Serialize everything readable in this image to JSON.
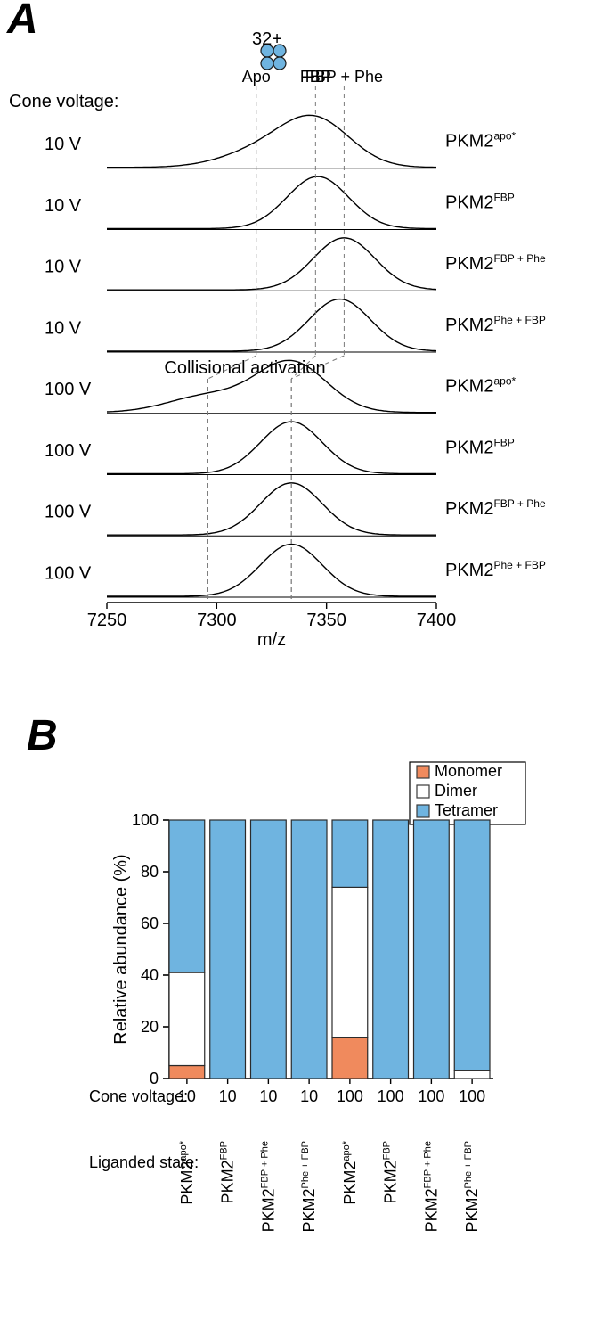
{
  "panelA": {
    "label": "A",
    "coneVoltageLabel": "Cone voltage:",
    "collisionalLabel": "Collisional activation",
    "chargeLabel": "32+",
    "xAxisLabel": "m/z",
    "xlim": [
      7250,
      7400
    ],
    "xticks": [
      7250,
      7300,
      7350,
      7400
    ],
    "markerLabels": [
      "Apo",
      "FBP",
      "FBP + Phe"
    ],
    "markerX_top": [
      7318,
      7345,
      7358
    ],
    "markerX_bot": [
      7296,
      7334,
      7334
    ],
    "traces": [
      {
        "voltage": "10 V",
        "name": "PKM2",
        "super": "apo*",
        "peak": 7345,
        "shoulder": 7320
      },
      {
        "voltage": "10 V",
        "name": "PKM2",
        "super": "FBP",
        "peak": 7346,
        "shoulder": null
      },
      {
        "voltage": "10 V",
        "name": "PKM2",
        "super": "FBP + Phe",
        "peak": 7358,
        "shoulder": null
      },
      {
        "voltage": "10 V",
        "name": "PKM2",
        "super": "Phe + FBP",
        "peak": 7356,
        "shoulder": null
      },
      {
        "voltage": "100 V",
        "name": "PKM2",
        "super": "apo*",
        "peak": 7334,
        "shoulder": 7296
      },
      {
        "voltage": "100 V",
        "name": "PKM2",
        "super": "FBP",
        "peak": 7334,
        "shoulder": null
      },
      {
        "voltage": "100 V",
        "name": "PKM2",
        "super": "FBP + Phe",
        "peak": 7334,
        "shoulder": null
      },
      {
        "voltage": "100 V",
        "name": "PKM2",
        "super": "Phe + FBP",
        "peak": 7334,
        "shoulder": null
      }
    ],
    "lineColor": "#000000",
    "dashColor": "#7a7a7a",
    "tetramerColor": "#6fb4e0",
    "tetramerStroke": "#1a1a1a"
  },
  "panelB": {
    "label": "B",
    "ylabel": "Relative abundance (%)",
    "ylim": [
      0,
      100
    ],
    "yticks": [
      0,
      20,
      40,
      60,
      80,
      100
    ],
    "legend": [
      {
        "label": "Monomer",
        "color": "#f08a5d",
        "stroke": "#3a3a3a"
      },
      {
        "label": "Dimer",
        "color": "#ffffff",
        "stroke": "#3a3a3a"
      },
      {
        "label": "Tetramer",
        "color": "#6fb4e0",
        "stroke": "#3a3a3a"
      }
    ],
    "coneVoltageLabel": "Cone voltage:",
    "ligandedStateLabel": "Liganded state:",
    "bars": [
      {
        "cv": "10",
        "name": "PKM2",
        "super": "apo*",
        "monomer": 5,
        "dimer": 36,
        "tetramer": 59
      },
      {
        "cv": "10",
        "name": "PKM2",
        "super": "FBP",
        "monomer": 0,
        "dimer": 0,
        "tetramer": 100
      },
      {
        "cv": "10",
        "name": "PKM2",
        "super": "FBP + Phe",
        "monomer": 0,
        "dimer": 0,
        "tetramer": 100
      },
      {
        "cv": "10",
        "name": "PKM2",
        "super": "Phe + FBP",
        "monomer": 0,
        "dimer": 0,
        "tetramer": 100
      },
      {
        "cv": "100",
        "name": "PKM2",
        "super": "apo*",
        "monomer": 16,
        "dimer": 58,
        "tetramer": 26
      },
      {
        "cv": "100",
        "name": "PKM2",
        "super": "FBP",
        "monomer": 0,
        "dimer": 0,
        "tetramer": 100
      },
      {
        "cv": "100",
        "name": "PKM2",
        "super": "FBP + Phe",
        "monomer": 0,
        "dimer": 0,
        "tetramer": 100
      },
      {
        "cv": "100",
        "name": "PKM2",
        "super": "Phe + FBP",
        "monomer": 0,
        "dimer": 3,
        "tetramer": 97
      }
    ],
    "barStroke": "#2b2b2b",
    "axisColor": "#000000",
    "textColor": "#000000"
  }
}
